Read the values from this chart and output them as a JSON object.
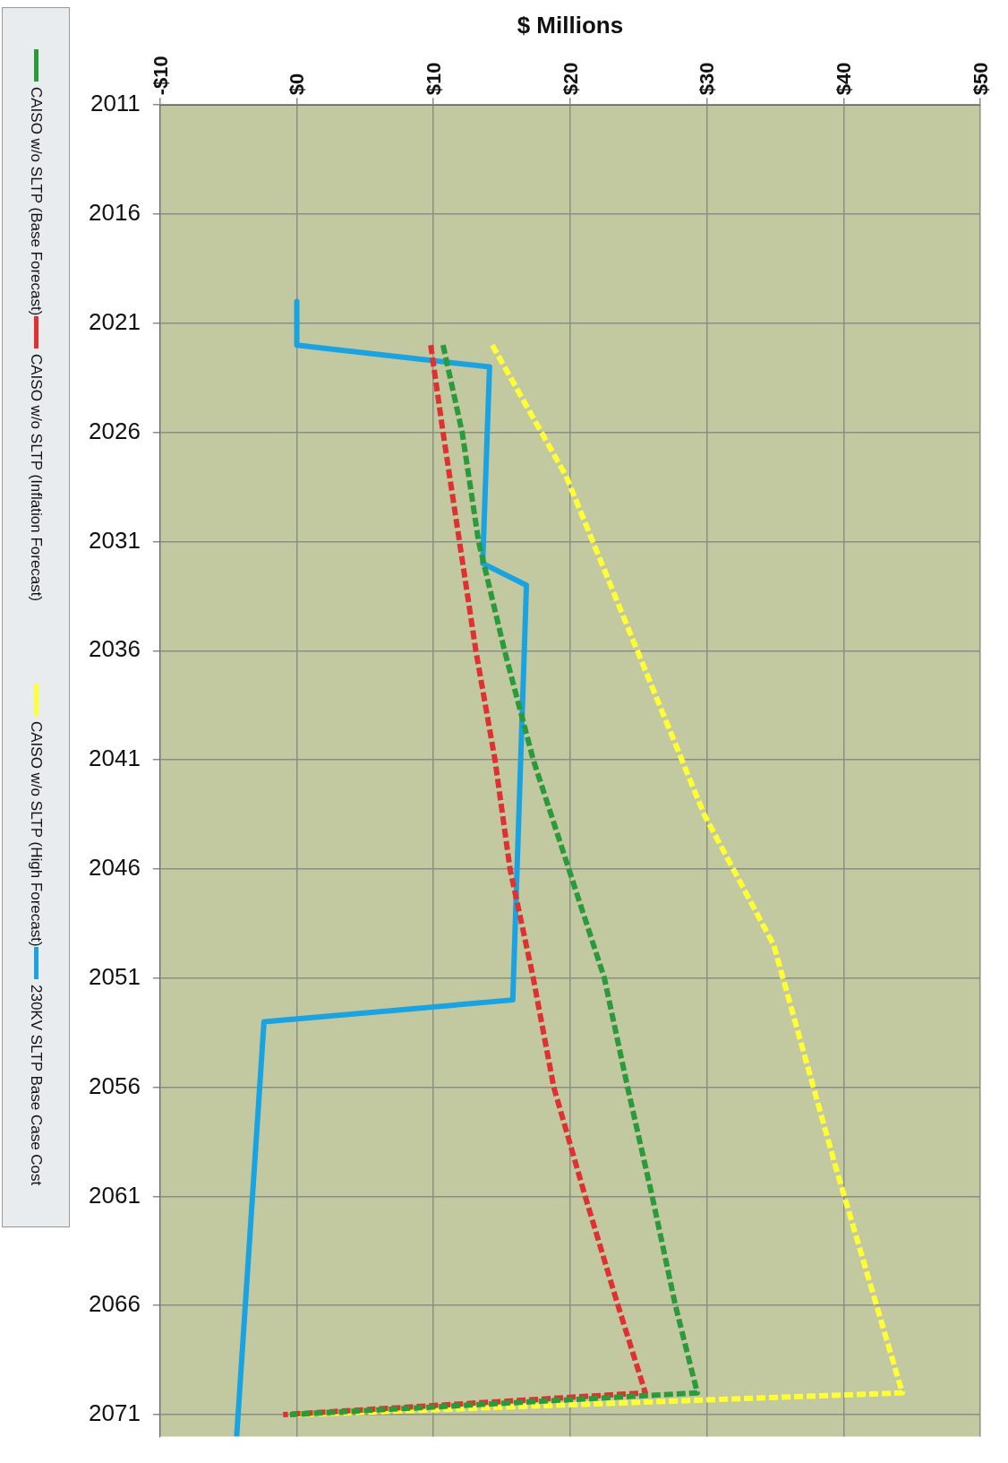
{
  "chart_data": {
    "type": "line",
    "orientation": "horizontal",
    "xlabel": "$ Millions",
    "xlim": [
      -10,
      50
    ],
    "xticks": [
      {
        "value": -10,
        "label": "-$10"
      },
      {
        "value": 0,
        "label": "$0"
      },
      {
        "value": 10,
        "label": "$10"
      },
      {
        "value": 20,
        "label": "$20"
      },
      {
        "value": 30,
        "label": "$30"
      },
      {
        "value": 40,
        "label": "$40"
      },
      {
        "value": 50,
        "label": "$50"
      }
    ],
    "ylim": [
      2072,
      2011
    ],
    "yticks": [
      2011,
      2016,
      2021,
      2026,
      2031,
      2036,
      2041,
      2046,
      2051,
      2056,
      2061,
      2066,
      2071
    ],
    "grid": true,
    "legend": "left",
    "marker": "none",
    "series": [
      {
        "name": "CAISO w/o SLTP (Base Forecast)",
        "color": "#2a9a3a",
        "line_style": "dashed",
        "x": [
          2022,
          2026,
          2031,
          2036,
          2041,
          2046,
          2051,
          2056,
          2061,
          2066,
          2070,
          2071
        ],
        "values": [
          10.7,
          12.1,
          13.3,
          15.2,
          17.3,
          19.9,
          22.5,
          24.2,
          26,
          27.7,
          29.3,
          -0.5
        ]
      },
      {
        "name": "CAISO w/o SLTP (Inflation Forecast)",
        "color": "#e03030",
        "line_style": "dashed",
        "x": [
          2022,
          2026,
          2031,
          2036,
          2041,
          2046,
          2051,
          2056,
          2061,
          2066,
          2070,
          2071
        ],
        "values": [
          9.8,
          10.7,
          11.9,
          13.1,
          14.5,
          15.6,
          17.3,
          18.8,
          21.1,
          23.5,
          25.5,
          -1
        ]
      },
      {
        "name": "CAISO w/o SLTP (High Forecast)",
        "color": "#ffff33",
        "line_style": "dashed",
        "x": [
          2022,
          2028,
          2043.5,
          2049.5,
          2059.6,
          2070,
          2071
        ],
        "values": [
          14.3,
          19.7,
          29.8,
          34.9,
          39.4,
          44.3,
          0
        ]
      },
      {
        "name": "230KV SLTP Base Case Cost",
        "color": "#1aa3e0",
        "line_style": "solid",
        "x": [
          2020,
          2022,
          2023,
          2032,
          2033,
          2052,
          2053,
          2072
        ],
        "values": [
          0,
          0,
          14.1,
          13.6,
          16.8,
          15.8,
          -2.4,
          -4.4
        ]
      }
    ]
  }
}
